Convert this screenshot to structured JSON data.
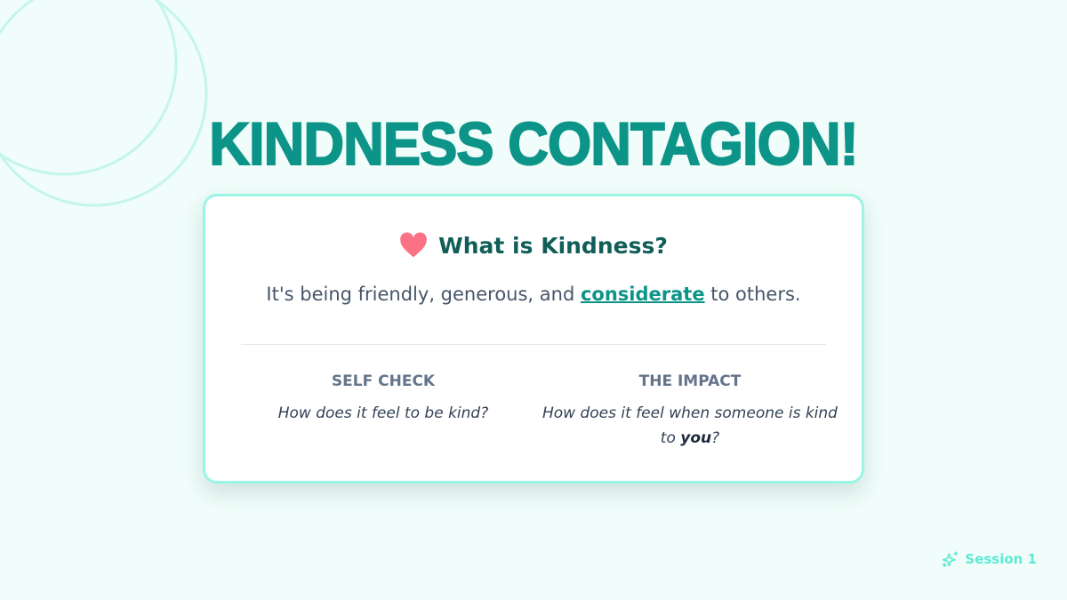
{
  "title": "KINDNESS CONTAGION!",
  "card": {
    "heading": "What is Kindness?",
    "heading_icon": "heart-icon",
    "body_before": "It's being friendly, generous, and ",
    "body_link": "considerate",
    "body_after": " to others.",
    "columns": [
      {
        "label": "SELF CHECK",
        "question": "How does it feel to be kind?"
      },
      {
        "label": "THE IMPACT",
        "question_before": "How does it feel when someone is kind to ",
        "question_bold": "you",
        "question_after": "?"
      }
    ]
  },
  "footer": {
    "icon": "sparkles-icon",
    "label": "Session 1"
  },
  "colors": {
    "accent": "#0d9488",
    "background": "#f0fdfa",
    "card_border": "#99f6e4",
    "heart": "#fb7185"
  }
}
